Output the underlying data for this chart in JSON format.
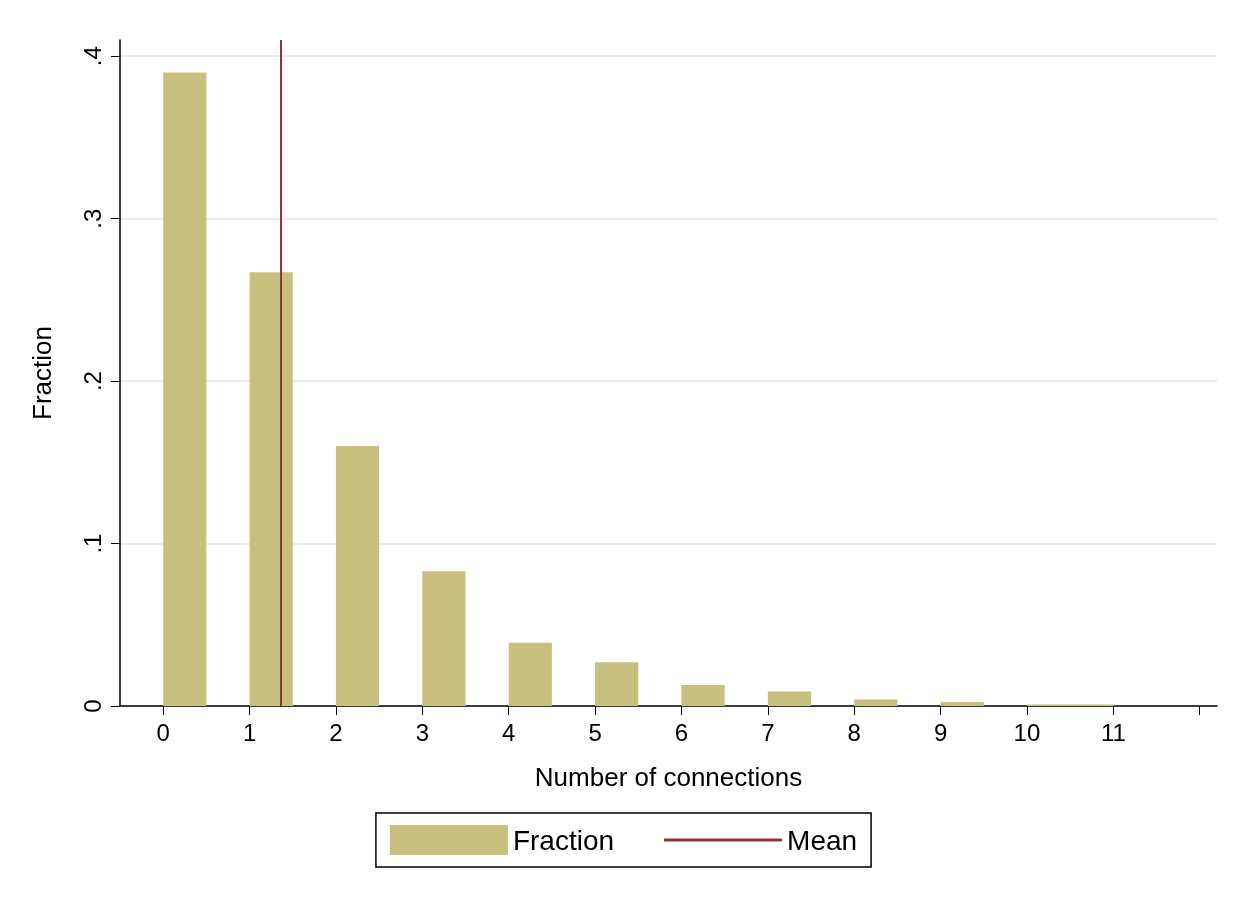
{
  "chart_data": {
    "type": "bar",
    "xlabel": "Number of connections",
    "ylabel": "Fraction",
    "x": [
      0.25,
      1.25,
      2.25,
      3.25,
      4.25,
      5.25,
      6.25,
      7.25,
      8.25,
      9.25,
      10.25,
      10.75
    ],
    "series": [
      {
        "name": "Fraction",
        "color": "#c8c07e",
        "values": [
          0.39,
          0.267,
          0.16,
          0.083,
          0.039,
          0.027,
          0.013,
          0.009,
          0.004,
          0.0025,
          0.001,
          0.001
        ]
      }
    ],
    "xlim": [
      -0.5,
      12.2
    ],
    "xticks": [
      0,
      1,
      2,
      3,
      4,
      5,
      6,
      7,
      8,
      9,
      10,
      11,
      {
        "value": 12,
        "label": null
      }
    ],
    "ylim": [
      0,
      0.41
    ],
    "yticks": [
      0,
      {
        "value": 0.1,
        "label": ".1"
      },
      {
        "value": 0.2,
        "label": ".2"
      },
      {
        "value": 0.3,
        "label": ".3"
      },
      {
        "value": 0.4,
        "label": ".4"
      }
    ],
    "ref_lines": [
      {
        "axis": "x",
        "value": 1.36,
        "label": "Mean",
        "color": "#90353b",
        "line_style": "solid"
      }
    ],
    "grid": "y",
    "legend": "bottom"
  }
}
